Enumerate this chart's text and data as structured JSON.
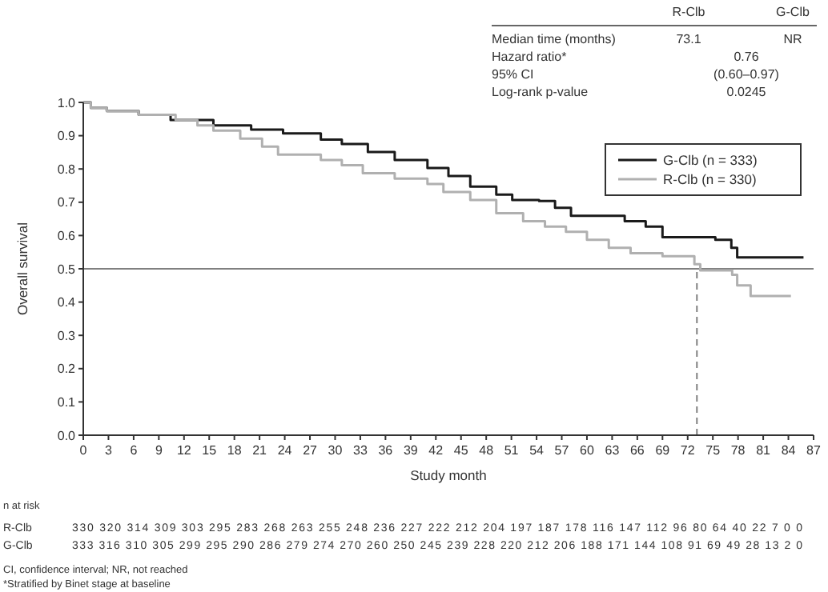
{
  "chart_data": {
    "type": "step",
    "xlabel": "Study month",
    "ylabel": "Overall survival",
    "xlim": [
      0,
      87
    ],
    "xticks": [
      0,
      3,
      6,
      9,
      12,
      15,
      18,
      21,
      24,
      27,
      30,
      33,
      36,
      39,
      42,
      45,
      48,
      51,
      54,
      57,
      60,
      63,
      66,
      69,
      72,
      75,
      78,
      81,
      84,
      87
    ],
    "ylim": [
      0,
      1
    ],
    "yticks": [
      {
        "value": 0,
        "label": "0.0"
      },
      0.1,
      0.2,
      0.3,
      0.4,
      0.5,
      0.6,
      0.7,
      0.8,
      0.9,
      {
        "value": 1,
        "label": "1.0"
      }
    ],
    "legend": "top right",
    "grid": false,
    "series": [
      {
        "name": "G-Clb (n = 333)",
        "color": "#1a1a1a",
        "x": [
          0,
          0.9,
          2.8,
          6.6,
          10.4,
          15.5,
          20,
          23.8,
          28.3,
          30.8,
          33.9,
          37.1,
          41,
          43.5,
          46.1,
          49.2,
          51.1,
          54.3,
          56.2,
          58.1,
          64.5,
          67,
          69,
          75.3,
          77.2,
          77.9,
          85.8
        ],
        "values": [
          1,
          0.984,
          0.974,
          0.963,
          0.947,
          0.931,
          0.918,
          0.907,
          0.888,
          0.875,
          0.851,
          0.827,
          0.803,
          0.779,
          0.747,
          0.723,
          0.707,
          0.704,
          0.683,
          0.659,
          0.643,
          0.627,
          0.595,
          0.587,
          0.563,
          0.534,
          0.534
        ]
      },
      {
        "name": "R-Clb (n = 330)",
        "color": "#b0b0b0",
        "x": [
          0,
          0.9,
          2.8,
          6.6,
          11,
          13.6,
          15.5,
          18.7,
          21.3,
          23.2,
          28.3,
          30.8,
          33.3,
          37.1,
          41,
          42.9,
          46.1,
          49.2,
          52.4,
          55,
          57.5,
          60,
          62.6,
          65.2,
          69,
          72.8,
          73.5,
          77.3,
          77.9,
          79.5,
          84.3
        ],
        "values": [
          1,
          0.984,
          0.974,
          0.963,
          0.947,
          0.931,
          0.915,
          0.891,
          0.867,
          0.843,
          0.827,
          0.811,
          0.787,
          0.771,
          0.755,
          0.731,
          0.707,
          0.667,
          0.643,
          0.627,
          0.611,
          0.587,
          0.563,
          0.547,
          0.538,
          0.514,
          0.495,
          0.482,
          0.45,
          0.418,
          0.418
        ]
      }
    ],
    "ref_lines": [
      {
        "axis": "y",
        "value": 0.5,
        "color": "#808080",
        "line_style": "solid"
      },
      {
        "axis": "x",
        "value": 73.1,
        "color": "#808080",
        "line_style": "dashed"
      }
    ],
    "annotations": [
      "R-Clb",
      "G-Clb",
      "Median time (months)",
      "73.1",
      "NR",
      "Hazard ratio*",
      "0.76",
      "95% CI",
      "(0.60–0.97)",
      "Log-rank p-value",
      "0.0245",
      "n at risk",
      "R-Clb",
      "330 320 314 309 303 295 283 268 263 255 248 236 227 222 212 204 197 187 178 116 147 112 96 80 64 40 22 7 0 0",
      "G-Clb",
      "333 316 310 305 299 295 290 286 279 274 270 260 250 245 239 228 220 212 206 188 171 144 108 91 69 49 28 13 2 0",
      "CI, confidence interval; NR, not reached",
      "*Stratified by Binet stage at baseline"
    ]
  }
}
